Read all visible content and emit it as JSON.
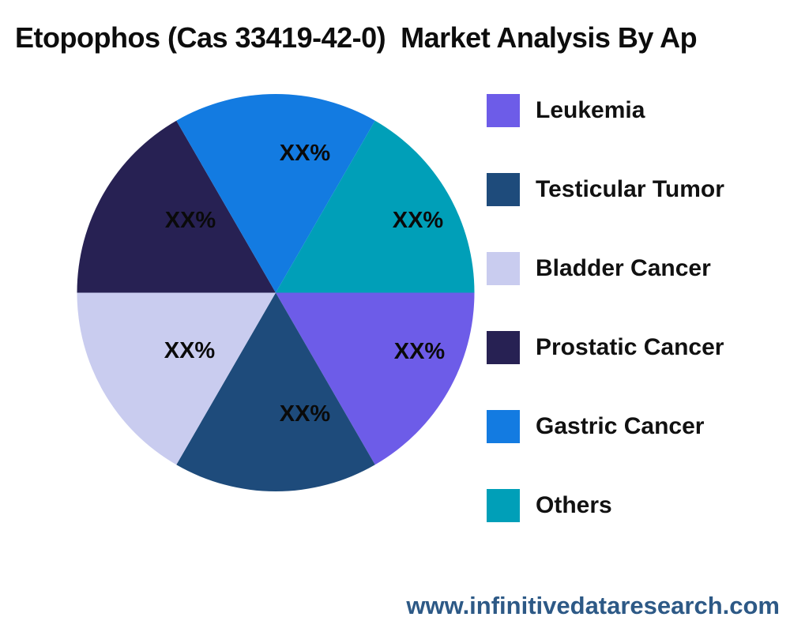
{
  "chart_data": {
    "type": "pie",
    "title": "Etopophos (Cas 33419-42-0)  Market Analysis By Ap",
    "legend_position": "right",
    "start_angle_deg": 0,
    "direction": "clockwise",
    "slices_equal": true,
    "slices": [
      {
        "label": "Leukemia",
        "value_label": "XX%",
        "angle_deg": 60,
        "value": 16.67,
        "color": "#6d5ce8"
      },
      {
        "label": "Testicular Tumor",
        "value_label": "XX%",
        "angle_deg": 60,
        "value": 16.67,
        "color": "#1e4b7b"
      },
      {
        "label": "Bladder Cancer",
        "value_label": "XX%",
        "angle_deg": 60,
        "value": 16.67,
        "color": "#c9ccef"
      },
      {
        "label": "Prostatic Cancer",
        "value_label": "XX%",
        "angle_deg": 60,
        "value": 16.67,
        "color": "#272153"
      },
      {
        "label": "Gastric Cancer",
        "value_label": "XX%",
        "angle_deg": 60,
        "value": 16.67,
        "color": "#137be1"
      },
      {
        "label": "Others",
        "value_label": "XX%",
        "angle_deg": 60,
        "value": 16.67,
        "color": "#009fb8"
      }
    ]
  },
  "footer": {
    "url": "www.infinitivedataresearch.com",
    "color": "#2d5986"
  },
  "text_color": "#0d0d0d"
}
